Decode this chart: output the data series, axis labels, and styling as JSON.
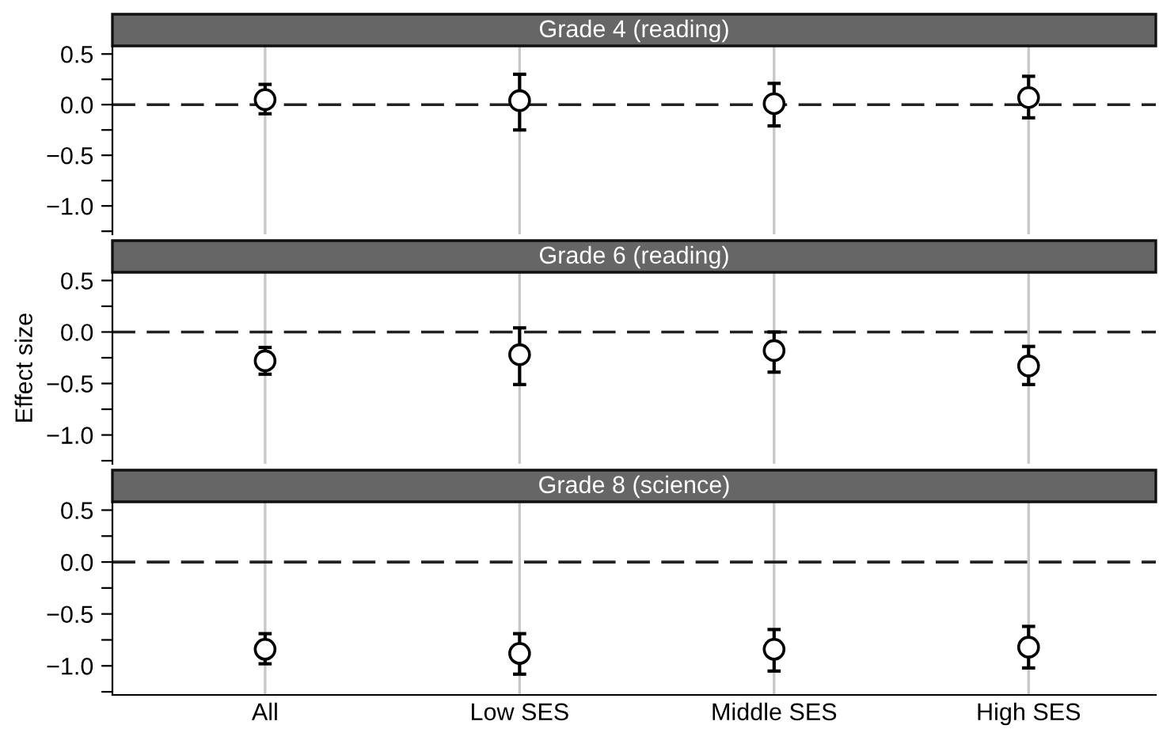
{
  "chart_data": [
    {
      "type": "scatter",
      "title": "Grade 4 (reading)",
      "categories": [
        null,
        null,
        null,
        null
      ],
      "tick_labels": "y",
      "series": [
        {
          "color": "#000000",
          "values": [
            0.05,
            0.04,
            0.01,
            0.07
          ],
          "errors": [
            [
              -0.09,
              0.2
            ],
            [
              -0.25,
              0.3
            ],
            [
              -0.21,
              0.21
            ],
            [
              -0.13,
              0.28
            ]
          ]
        }
      ],
      "ylim": [
        -1.28,
        0.58
      ],
      "yticks": [
        {
          "value": 0.5,
          "label": "0.5"
        },
        {
          "value": 0.25,
          "label": null
        },
        {
          "value": 0,
          "label": "0.0"
        },
        {
          "value": -0.25,
          "label": null
        },
        {
          "value": -0.5,
          "label": "−0.5"
        },
        {
          "value": -0.75,
          "label": null
        },
        {
          "value": -1,
          "label": "−1.0"
        },
        {
          "value": -1.25,
          "label": null
        }
      ],
      "ref_lines": [
        {
          "axis": "y",
          "value": 0,
          "color": "#222222",
          "line_style": "dashed"
        }
      ],
      "grid": "x",
      "marker": "circle"
    },
    {
      "type": "scatter",
      "title": "Grade 6 (reading)",
      "ylabel": "Effect size",
      "categories": [
        null,
        null,
        null,
        null
      ],
      "tick_labels": "y",
      "series": [
        {
          "color": "#000000",
          "values": [
            -0.28,
            -0.22,
            -0.18,
            -0.33
          ],
          "errors": [
            [
              -0.41,
              -0.15
            ],
            [
              -0.51,
              0.04
            ],
            [
              -0.39,
              0.0
            ],
            [
              -0.51,
              -0.14
            ]
          ]
        }
      ],
      "ylim": [
        -1.28,
        0.58
      ],
      "yticks": [
        {
          "value": 0.5,
          "label": "0.5"
        },
        {
          "value": 0.25,
          "label": null
        },
        {
          "value": 0,
          "label": "0.0"
        },
        {
          "value": -0.25,
          "label": null
        },
        {
          "value": -0.5,
          "label": "−0.5"
        },
        {
          "value": -0.75,
          "label": null
        },
        {
          "value": -1,
          "label": "−1.0"
        },
        {
          "value": -1.25,
          "label": null
        }
      ],
      "ref_lines": [
        {
          "axis": "y",
          "value": 0,
          "color": "#222222",
          "line_style": "dashed"
        }
      ],
      "grid": "x",
      "marker": "circle"
    },
    {
      "type": "scatter",
      "title": "Grade 8 (science)",
      "categories": [
        "All",
        "Low SES",
        "Middle SES",
        "High SES"
      ],
      "series": [
        {
          "color": "#000000",
          "values": [
            -0.84,
            -0.88,
            -0.84,
            -0.82
          ],
          "errors": [
            [
              -0.98,
              -0.69
            ],
            [
              -1.08,
              -0.69
            ],
            [
              -1.05,
              -0.65
            ],
            [
              -1.02,
              -0.62
            ]
          ]
        }
      ],
      "ylim": [
        -1.28,
        0.58
      ],
      "yticks": [
        {
          "value": 0.5,
          "label": "0.5"
        },
        {
          "value": 0.25,
          "label": null
        },
        {
          "value": 0,
          "label": "0.0"
        },
        {
          "value": -0.25,
          "label": null
        },
        {
          "value": -0.5,
          "label": "−0.5"
        },
        {
          "value": -0.75,
          "label": null
        },
        {
          "value": -1,
          "label": "−1.0"
        },
        {
          "value": -1.25,
          "label": null
        }
      ],
      "ref_lines": [
        {
          "axis": "y",
          "value": 0,
          "color": "#222222",
          "line_style": "dashed"
        }
      ],
      "grid": "x",
      "marker": "circle"
    }
  ]
}
